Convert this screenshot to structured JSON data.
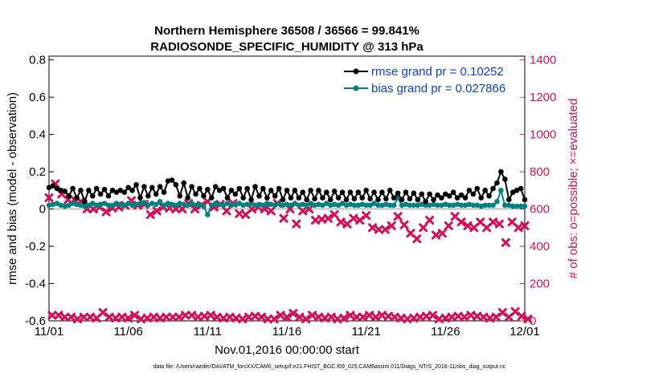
{
  "chart_data": {
    "type": "line",
    "title_line1": "Northern Hemisphere 36508 / 36566 = 99.841%",
    "title_line2": "RADIOSONDE_SPECIFIC_HUMIDITY @ 313 hPa",
    "xlabel": "Nov.01,2016 00:00:00 start",
    "ylabel": "rmse and bias (model - observation)",
    "ylabel_right": "# of obs: o=possible; ×=evaluated",
    "xlim": [
      0,
      30
    ],
    "ylim": [
      -0.6,
      0.82
    ],
    "ylim_right": [
      0,
      1420
    ],
    "x_ticks": [
      0,
      5,
      10,
      15,
      20,
      25,
      30
    ],
    "x_tick_labels": [
      "11/01",
      "11/06",
      "11/11",
      "11/16",
      "11/21",
      "11/26",
      "12/01"
    ],
    "y_ticks": [
      -0.6,
      -0.4,
      -0.2,
      0,
      0.2,
      0.4,
      0.6,
      0.8
    ],
    "y_tick_labels": [
      "-0.6",
      "-0.4",
      "-0.2",
      "0",
      "0.2",
      "0.4",
      "0.6",
      "0.8"
    ],
    "y_right_ticks": [
      0,
      200,
      400,
      600,
      800,
      1000,
      1200,
      1400
    ],
    "y_right_tick_labels": [
      "0",
      "200",
      "400",
      "600",
      "800",
      "1000",
      "1200",
      "1400"
    ],
    "legend": [
      {
        "label": "rmse grand pr = 0.10252",
        "color": "#000000"
      },
      {
        "label": "bias grand pr = 0.027866",
        "color": "#008080"
      }
    ],
    "legend_position": "top-right",
    "step_days": 0.25,
    "series": [
      {
        "name": "rmse",
        "color": "#000000",
        "axis": "left",
        "values": [
          0.115,
          0.125,
          0.11,
          0.1,
          0.095,
          0.07,
          0.11,
          0.06,
          0.1,
          0.04,
          0.1,
          0.07,
          0.11,
          0.08,
          0.105,
          0.07,
          0.1,
          0.09,
          0.1,
          0.09,
          0.115,
          0.1,
          0.13,
          0.06,
          0.12,
          0.07,
          0.115,
          0.08,
          0.12,
          0.09,
          0.15,
          0.155,
          0.13,
          0.07,
          0.14,
          0.06,
          0.12,
          0.08,
          0.11,
          0.07,
          0.105,
          0.06,
          0.12,
          0.1,
          0.11,
          0.06,
          0.1,
          0.08,
          0.11,
          0.06,
          0.11,
          0.05,
          0.12,
          0.07,
          0.11,
          0.06,
          0.1,
          0.07,
          0.11,
          0.05,
          0.1,
          0.06,
          0.1,
          0.06,
          0.09,
          0.05,
          0.1,
          0.055,
          0.1,
          0.06,
          0.09,
          0.05,
          0.095,
          0.06,
          0.09,
          0.05,
          0.09,
          0.055,
          0.09,
          0.06,
          0.1,
          0.055,
          0.09,
          0.05,
          0.09,
          0.055,
          0.1,
          0.06,
          0.085,
          0.05,
          0.09,
          0.055,
          0.085,
          0.05,
          0.08,
          0.04,
          0.08,
          0.05,
          0.075,
          0.06,
          0.08,
          0.07,
          0.09,
          0.06,
          0.075,
          0.06,
          0.1,
          0.08,
          0.11,
          0.06,
          0.1,
          0.07,
          0.11,
          0.14,
          0.2,
          0.16,
          0.05,
          0.09,
          0.1,
          0.11,
          0.05
        ]
      },
      {
        "name": "bias",
        "color": "#008080",
        "axis": "left",
        "values": [
          0.02,
          0.025,
          0.03,
          0.02,
          0.015,
          0.02,
          0.03,
          0.025,
          0.02,
          0.015,
          0.02,
          0.03,
          0.02,
          0.025,
          0.03,
          0.02,
          0.02,
          0.03,
          0.025,
          0.02,
          0.03,
          0.02,
          0.025,
          0.03,
          0.035,
          0.02,
          0.03,
          0.025,
          0.04,
          0.02,
          0.03,
          0.025,
          0.02,
          0.03,
          0.025,
          0.02,
          0.03,
          0.02,
          0.025,
          0.015,
          -0.03,
          0.02,
          0.03,
          0.025,
          0.02,
          0.03,
          0.02,
          0.025,
          0.03,
          0.02,
          0.025,
          0.03,
          0.02,
          0.025,
          0.02,
          0.03,
          0.025,
          0.02,
          0.03,
          0.02,
          0.025,
          0.02,
          0.03,
          0.02,
          0.025,
          0.02,
          0.03,
          0.02,
          0.025,
          0.02,
          0.03,
          0.02,
          0.025,
          0.02,
          0.03,
          0.02,
          0.025,
          0.02,
          0.02,
          0.025,
          0.02,
          0.02,
          0.03,
          0.02,
          0.02,
          0.025,
          0.02,
          0.02,
          0.06,
          0.02,
          0.025,
          0.02,
          0.02,
          0.02,
          0.025,
          0.02,
          0.02,
          0.025,
          0.02,
          0.02,
          0.025,
          0.02,
          0.02,
          0.025,
          0.02,
          0.02,
          0.025,
          0.02,
          0.02,
          0.015,
          0.02,
          0.02,
          0.02,
          0.04,
          0.1,
          0.02,
          0.02,
          0.015,
          0.015,
          0.015,
          0.015
        ]
      },
      {
        "name": "# of obs possible",
        "color": "#d1105a",
        "axis": "right",
        "values": [
          660,
          30,
          735,
          30,
          680,
          20,
          650,
          20,
          650,
          10,
          640,
          20,
          600,
          20,
          600,
          15,
          610,
          45,
          585,
          20,
          605,
          15,
          610,
          20,
          620,
          15,
          645,
          30,
          620,
          10,
          625,
          15,
          570,
          20,
          590,
          15,
          610,
          20,
          605,
          20,
          600,
          20,
          600,
          30,
          630,
          30,
          600,
          20,
          620,
          25,
          640,
          30,
          610,
          20,
          625,
          15,
          590,
          20,
          630,
          15,
          575,
          10,
          570,
          20,
          600,
          25,
          610,
          20,
          600,
          10,
          590,
          10,
          630,
          30,
          550,
          20,
          600,
          40,
          520,
          20,
          590,
          10,
          600,
          30,
          540,
          20,
          545,
          15,
          550,
          20,
          570,
          10,
          530,
          15,
          520,
          30,
          550,
          20,
          540,
          20,
          565,
          30,
          500,
          20,
          490,
          30,
          490,
          25,
          510,
          20,
          560,
          15,
          515,
          10,
          470,
          15,
          440,
          20,
          500,
          25,
          540,
          30,
          460,
          10,
          470,
          15,
          510,
          20,
          560,
          25,
          530,
          20,
          510,
          30,
          500,
          25,
          530,
          20,
          500,
          15,
          530,
          20,
          520,
          45,
          420,
          20,
          530,
          50,
          500,
          25,
          510,
          10
        ]
      }
    ]
  },
  "footnote": "data file: /Users/raeder/DAI/ATM_forcXX/CAM6_setup/f.e21.FHIST_BGC.f09_025.CAM6assim.011/Diags_NTrS_2016-11/obs_diag_output.nc"
}
